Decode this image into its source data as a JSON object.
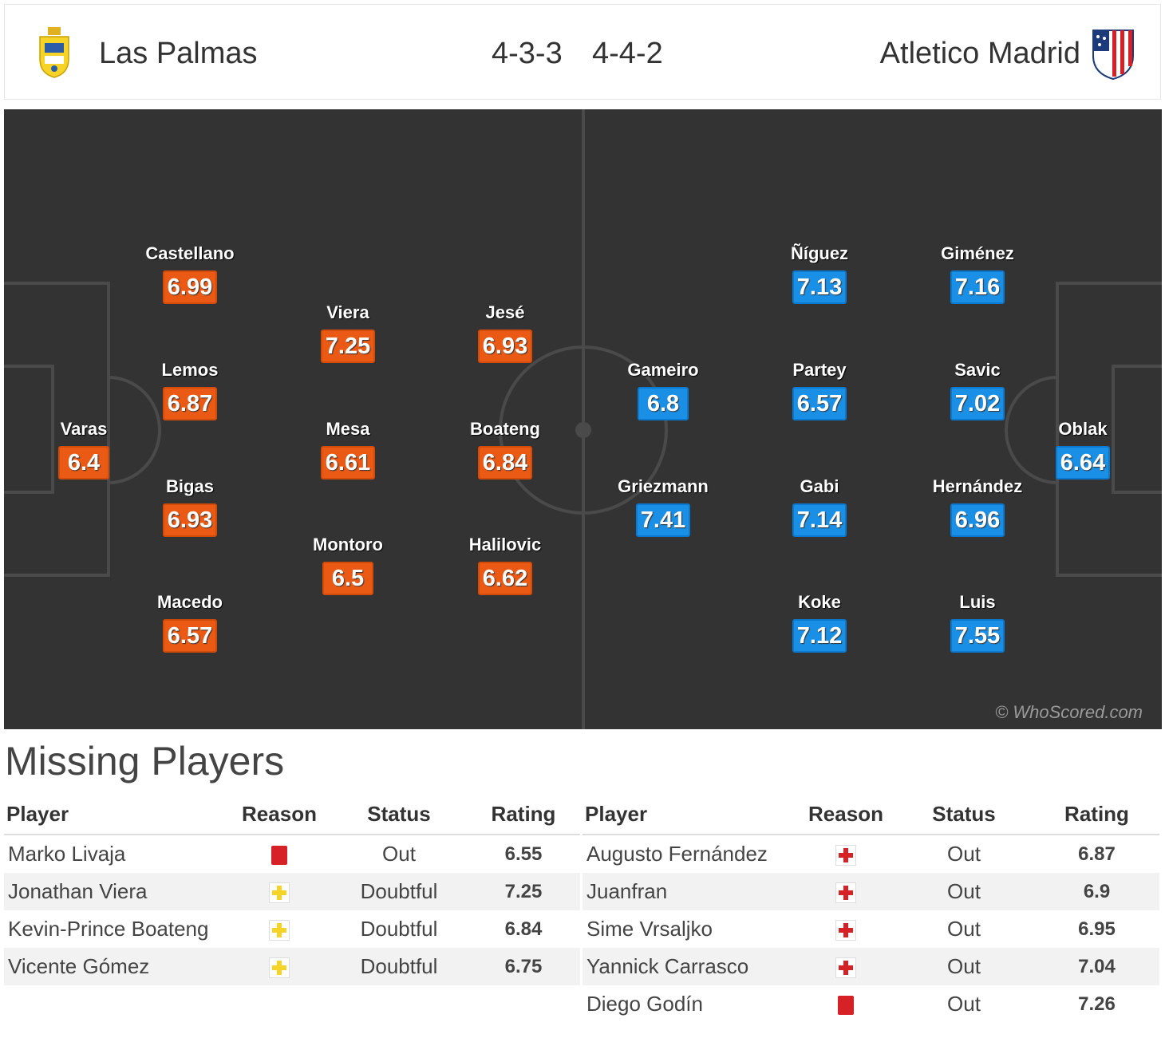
{
  "header": {
    "home_team": "Las Palmas",
    "home_formation": "4-3-3",
    "away_formation": "4-4-2",
    "away_team": "Atletico Madrid"
  },
  "pitch": {
    "watermark": "© WhoScored.com",
    "home_color": "#ea5a14",
    "away_color": "#1a8fe6",
    "home_players": [
      {
        "name": "Varas",
        "rating": "6.4"
      },
      {
        "name": "Castellano",
        "rating": "6.99"
      },
      {
        "name": "Lemos",
        "rating": "6.87"
      },
      {
        "name": "Bigas",
        "rating": "6.93"
      },
      {
        "name": "Macedo",
        "rating": "6.57"
      },
      {
        "name": "Viera",
        "rating": "7.25"
      },
      {
        "name": "Mesa",
        "rating": "6.61"
      },
      {
        "name": "Montoro",
        "rating": "6.5"
      },
      {
        "name": "Jesé",
        "rating": "6.93"
      },
      {
        "name": "Boateng",
        "rating": "6.84"
      },
      {
        "name": "Halilovic",
        "rating": "6.62"
      }
    ],
    "away_players": [
      {
        "name": "Oblak",
        "rating": "6.64"
      },
      {
        "name": "Giménez",
        "rating": "7.16"
      },
      {
        "name": "Savic",
        "rating": "7.02"
      },
      {
        "name": "Hernández",
        "rating": "6.96"
      },
      {
        "name": "Luis",
        "rating": "7.55"
      },
      {
        "name": "Ñíguez",
        "rating": "7.13"
      },
      {
        "name": "Partey",
        "rating": "6.57"
      },
      {
        "name": "Gabi",
        "rating": "7.14"
      },
      {
        "name": "Koke",
        "rating": "7.12"
      },
      {
        "name": "Gameiro",
        "rating": "6.8"
      },
      {
        "name": "Griezmann",
        "rating": "7.41"
      }
    ]
  },
  "missing": {
    "title": "Missing Players",
    "columns": {
      "player": "Player",
      "reason": "Reason",
      "status": "Status",
      "rating": "Rating"
    },
    "home": [
      {
        "player": "Marko Livaja",
        "reason_icon": "red-card-icon",
        "status": "Out",
        "rating": "6.55"
      },
      {
        "player": "Jonathan Viera",
        "reason_icon": "doubtful-icon",
        "status": "Doubtful",
        "rating": "7.25"
      },
      {
        "player": "Kevin-Prince Boateng",
        "reason_icon": "doubtful-icon",
        "status": "Doubtful",
        "rating": "6.84"
      },
      {
        "player": "Vicente Gómez",
        "reason_icon": "doubtful-icon",
        "status": "Doubtful",
        "rating": "6.75"
      }
    ],
    "away": [
      {
        "player": "Augusto Fernández",
        "reason_icon": "injury-icon",
        "status": "Out",
        "rating": "6.87"
      },
      {
        "player": "Juanfran",
        "reason_icon": "injury-icon",
        "status": "Out",
        "rating": "6.9"
      },
      {
        "player": "Sime Vrsaljko",
        "reason_icon": "injury-icon",
        "status": "Out",
        "rating": "6.95"
      },
      {
        "player": "Yannick Carrasco",
        "reason_icon": "injury-icon",
        "status": "Out",
        "rating": "7.04"
      },
      {
        "player": "Diego Godín",
        "reason_icon": "red-card-icon",
        "status": "Out",
        "rating": "7.26"
      }
    ]
  }
}
